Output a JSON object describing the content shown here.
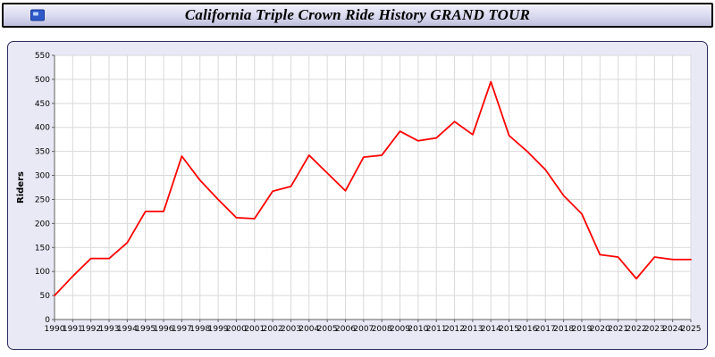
{
  "header": {
    "title": "California Triple Crown Ride History GRAND TOUR"
  },
  "colors": {
    "line": "#ff0000",
    "grid": "#d9d9d9",
    "axis": "#606060",
    "panel_background": "#e9e9f6",
    "plot_background": "#ffffff",
    "title_bar_accent": "#2f58c8"
  },
  "chart_data": {
    "type": "line",
    "title": "California Triple Crown Ride History GRAND TOUR",
    "xlabel": "",
    "ylabel": "Riders",
    "ylim": [
      0,
      550
    ],
    "ytick_step": 50,
    "grid": true,
    "legend": false,
    "categories": [
      "1990",
      "1991",
      "1992",
      "1993",
      "1994",
      "1995",
      "1996",
      "1997",
      "1998",
      "1999",
      "2000",
      "2001",
      "2002",
      "2003",
      "2004",
      "2005",
      "2006",
      "2007",
      "2008",
      "2009",
      "2010",
      "2011",
      "2012",
      "2013",
      "2014",
      "2015",
      "2016",
      "2017",
      "2018",
      "2019",
      "2020",
      "2021",
      "2022",
      "2023",
      "2024",
      "2025"
    ],
    "series": [
      {
        "name": "Riders",
        "values": [
          50,
          90,
          127,
          127,
          160,
          225,
          225,
          340,
          290,
          250,
          212,
          210,
          267,
          277,
          342,
          305,
          268,
          338,
          342,
          392,
          372,
          378,
          412,
          385,
          495,
          383,
          350,
          312,
          258,
          220,
          135,
          130,
          85,
          130,
          125,
          125
        ]
      }
    ]
  }
}
